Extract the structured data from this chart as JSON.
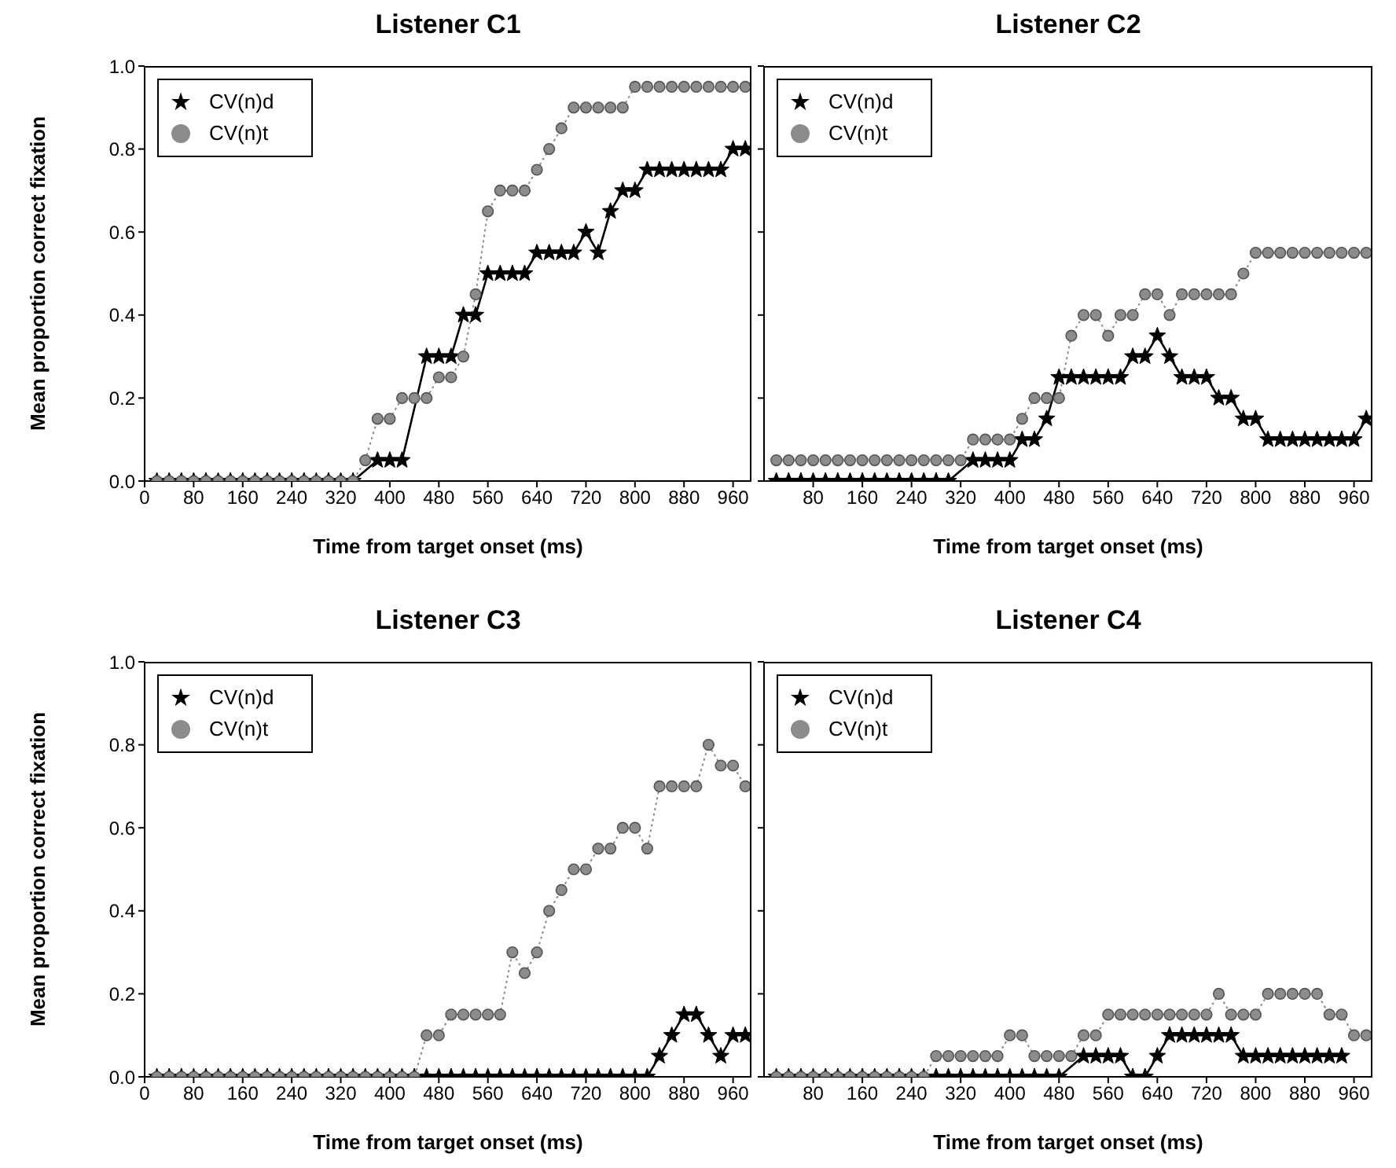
{
  "chart_data": [
    {
      "type": "line",
      "title": "Listener C1",
      "xlabel": "Time from target onset (ms)",
      "ylabel": "Mean proportion correct fixation",
      "legend": "top left",
      "grid": false,
      "x": [
        20,
        40,
        60,
        80,
        100,
        120,
        140,
        160,
        180,
        200,
        220,
        240,
        260,
        280,
        300,
        320,
        340,
        360,
        380,
        400,
        420,
        440,
        460,
        480,
        500,
        520,
        540,
        560,
        580,
        600,
        620,
        640,
        660,
        680,
        700,
        720,
        740,
        760,
        780,
        800,
        820,
        840,
        860,
        880,
        900,
        920,
        940,
        960,
        980
      ],
      "xlim": [
        0,
        990
      ],
      "xticks": [
        0,
        80,
        160,
        240,
        320,
        400,
        480,
        560,
        640,
        720,
        800,
        880,
        960
      ],
      "ylim": [
        0,
        1
      ],
      "yticks": [
        {
          "value": 0,
          "label": "0.0"
        },
        {
          "value": 0.2,
          "label": "0.2"
        },
        {
          "value": 0.4,
          "label": "0.4"
        },
        {
          "value": 0.6,
          "label": "0.6"
        },
        {
          "value": 0.8,
          "label": "0.8"
        },
        {
          "value": 1,
          "label": "1.0"
        }
      ],
      "series": [
        {
          "name": "CV(n)d",
          "color": "#000000",
          "marker": "star",
          "line_style": "solid",
          "values": [
            0,
            0,
            0,
            0,
            0,
            0,
            0,
            0,
            0,
            0,
            0,
            0,
            0,
            0,
            0,
            0,
            0,
            null,
            0.05,
            0.05,
            0.05,
            null,
            0.3,
            0.3,
            0.3,
            0.4,
            0.4,
            0.5,
            0.5,
            0.5,
            0.5,
            0.55,
            0.55,
            0.55,
            0.55,
            0.6,
            0.55,
            0.65,
            0.7,
            0.7,
            0.75,
            0.75,
            0.75,
            0.75,
            0.75,
            0.75,
            0.75,
            0.8,
            0.8
          ]
        },
        {
          "name": "CV(n)t",
          "color": "#8c8c8c",
          "marker": "circle",
          "line_style": "dotted",
          "values": [
            0,
            0,
            0,
            0,
            0,
            0,
            0,
            0,
            0,
            0,
            0,
            0,
            0,
            0,
            0,
            0,
            0,
            0.05,
            0.15,
            0.15,
            0.2,
            0.2,
            0.2,
            0.25,
            0.25,
            0.3,
            0.45,
            0.65,
            0.7,
            0.7,
            0.7,
            0.75,
            0.8,
            0.85,
            0.9,
            0.9,
            0.9,
            0.9,
            0.9,
            0.95,
            0.95,
            0.95,
            0.95,
            0.95,
            0.95,
            0.95,
            0.95,
            0.95,
            0.95
          ]
        }
      ]
    },
    {
      "type": "line",
      "title": "Listener C2",
      "xlabel": "Time from target onset (ms)",
      "legend": "top left",
      "grid": false,
      "tick_labels": "x",
      "x": [
        20,
        40,
        60,
        80,
        100,
        120,
        140,
        160,
        180,
        200,
        220,
        240,
        260,
        280,
        300,
        320,
        340,
        360,
        380,
        400,
        420,
        440,
        460,
        480,
        500,
        520,
        540,
        560,
        580,
        600,
        620,
        640,
        660,
        680,
        700,
        720,
        740,
        760,
        780,
        800,
        820,
        840,
        860,
        880,
        900,
        920,
        940,
        960,
        980
      ],
      "xlim": [
        0,
        990
      ],
      "xticks": [
        80,
        160,
        240,
        320,
        400,
        480,
        560,
        640,
        720,
        800,
        880,
        960
      ],
      "ylim": [
        0,
        1
      ],
      "yticks": [
        0,
        0.2,
        0.4,
        0.6,
        0.8,
        1
      ],
      "series": [
        {
          "name": "CV(n)d",
          "color": "#000000",
          "marker": "star",
          "line_style": "solid",
          "values": [
            0,
            0,
            0,
            0,
            0,
            0,
            0,
            0,
            0,
            0,
            0,
            0,
            0,
            0,
            0,
            null,
            0.05,
            0.05,
            0.05,
            0.05,
            0.1,
            0.1,
            0.15,
            0.25,
            0.25,
            0.25,
            0.25,
            0.25,
            0.25,
            0.3,
            0.3,
            0.35,
            0.3,
            0.25,
            0.25,
            0.25,
            0.2,
            0.2,
            0.15,
            0.15,
            0.1,
            0.1,
            0.1,
            0.1,
            0.1,
            0.1,
            0.1,
            0.1,
            0.15
          ]
        },
        {
          "name": "CV(n)t",
          "color": "#8c8c8c",
          "marker": "circle",
          "line_style": "dotted",
          "values": [
            0.05,
            0.05,
            0.05,
            0.05,
            0.05,
            0.05,
            0.05,
            0.05,
            0.05,
            0.05,
            0.05,
            0.05,
            0.05,
            0.05,
            0.05,
            0.05,
            0.1,
            0.1,
            0.1,
            0.1,
            0.15,
            0.2,
            0.2,
            0.2,
            0.35,
            0.4,
            0.4,
            0.35,
            0.4,
            0.4,
            0.45,
            0.45,
            0.4,
            0.45,
            0.45,
            0.45,
            0.45,
            0.45,
            0.5,
            0.55,
            0.55,
            0.55,
            0.55,
            0.55,
            0.55,
            0.55,
            0.55,
            0.55,
            0.55
          ]
        }
      ]
    },
    {
      "type": "line",
      "title": "Listener C3",
      "xlabel": "Time from target onset (ms)",
      "ylabel": "Mean proportion correct fixation",
      "legend": "top left",
      "grid": false,
      "x": [
        20,
        40,
        60,
        80,
        100,
        120,
        140,
        160,
        180,
        200,
        220,
        240,
        260,
        280,
        300,
        320,
        340,
        360,
        380,
        400,
        420,
        440,
        460,
        480,
        500,
        520,
        540,
        560,
        580,
        600,
        620,
        640,
        660,
        680,
        700,
        720,
        740,
        760,
        780,
        800,
        820,
        840,
        860,
        880,
        900,
        920,
        940,
        960,
        980
      ],
      "xlim": [
        0,
        990
      ],
      "xticks": [
        0,
        80,
        160,
        240,
        320,
        400,
        480,
        560,
        640,
        720,
        800,
        880,
        960
      ],
      "ylim": [
        0,
        1
      ],
      "yticks": [
        {
          "value": 0,
          "label": "0.0"
        },
        {
          "value": 0.2,
          "label": "0.2"
        },
        {
          "value": 0.4,
          "label": "0.4"
        },
        {
          "value": 0.6,
          "label": "0.6"
        },
        {
          "value": 0.8,
          "label": "0.8"
        },
        {
          "value": 1,
          "label": "1.0"
        }
      ],
      "series": [
        {
          "name": "CV(n)d",
          "color": "#000000",
          "marker": "star",
          "line_style": "solid",
          "values": [
            0,
            0,
            0,
            0,
            0,
            0,
            0,
            0,
            0,
            0,
            0,
            0,
            0,
            0,
            0,
            0,
            0,
            0,
            0,
            0,
            0,
            0,
            0,
            0,
            0,
            0,
            0,
            0,
            0,
            0,
            0,
            0,
            0,
            0,
            0,
            0,
            0,
            0,
            0,
            0,
            0,
            0.05,
            0.1,
            0.15,
            0.15,
            0.1,
            0.05,
            0.1,
            0.1
          ]
        },
        {
          "name": "CV(n)t",
          "color": "#8c8c8c",
          "marker": "circle",
          "line_style": "dotted",
          "values": [
            0,
            0,
            0,
            0,
            0,
            0,
            0,
            0,
            0,
            0,
            0,
            0,
            0,
            0,
            0,
            0,
            0,
            0,
            0,
            0,
            0,
            0,
            0.1,
            0.1,
            0.15,
            0.15,
            0.15,
            0.15,
            0.15,
            0.3,
            0.25,
            0.3,
            0.4,
            0.45,
            0.5,
            0.5,
            0.55,
            0.55,
            0.6,
            0.6,
            0.55,
            0.7,
            0.7,
            0.7,
            0.7,
            0.8,
            0.75,
            0.75,
            0.7
          ]
        }
      ]
    },
    {
      "type": "line",
      "title": "Listener C4",
      "xlabel": "Time from target onset (ms)",
      "legend": "top left",
      "grid": false,
      "tick_labels": "x",
      "x": [
        20,
        40,
        60,
        80,
        100,
        120,
        140,
        160,
        180,
        200,
        220,
        240,
        260,
        280,
        300,
        320,
        340,
        360,
        380,
        400,
        420,
        440,
        460,
        480,
        500,
        520,
        540,
        560,
        580,
        600,
        620,
        640,
        660,
        680,
        700,
        720,
        740,
        760,
        780,
        800,
        820,
        840,
        860,
        880,
        900,
        920,
        940,
        960,
        980
      ],
      "xlim": [
        0,
        990
      ],
      "xticks": [
        80,
        160,
        240,
        320,
        400,
        480,
        560,
        640,
        720,
        800,
        880,
        960
      ],
      "ylim": [
        0,
        1
      ],
      "yticks": [
        0,
        0.2,
        0.4,
        0.6,
        0.8,
        1
      ],
      "series": [
        {
          "name": "CV(n)d",
          "color": "#000000",
          "marker": "star",
          "line_style": "solid",
          "values": [
            0,
            0,
            0,
            0,
            0,
            0,
            0,
            0,
            0,
            0,
            0,
            0,
            0,
            0,
            0,
            0,
            0,
            0,
            0,
            0,
            0,
            0,
            0,
            0,
            null,
            0.05,
            0.05,
            0.05,
            0.05,
            0,
            0,
            0.05,
            0.1,
            0.1,
            0.1,
            0.1,
            0.1,
            0.1,
            0.05,
            0.05,
            0.05,
            0.05,
            0.05,
            0.05,
            0.05,
            0.05,
            0.05,
            null,
            null
          ]
        },
        {
          "name": "CV(n)t",
          "color": "#8c8c8c",
          "marker": "circle",
          "line_style": "dotted",
          "values": [
            0,
            0,
            0,
            0,
            0,
            0,
            0,
            0,
            0,
            0,
            0,
            0,
            0,
            0.05,
            0.05,
            0.05,
            0.05,
            0.05,
            0.05,
            0.1,
            0.1,
            0.05,
            0.05,
            0.05,
            0.05,
            0.1,
            0.1,
            0.15,
            0.15,
            0.15,
            0.15,
            0.15,
            0.15,
            0.15,
            0.15,
            0.15,
            0.2,
            0.15,
            0.15,
            0.15,
            0.2,
            0.2,
            0.2,
            0.2,
            0.2,
            0.15,
            0.15,
            0.1,
            0.1
          ]
        }
      ]
    }
  ]
}
